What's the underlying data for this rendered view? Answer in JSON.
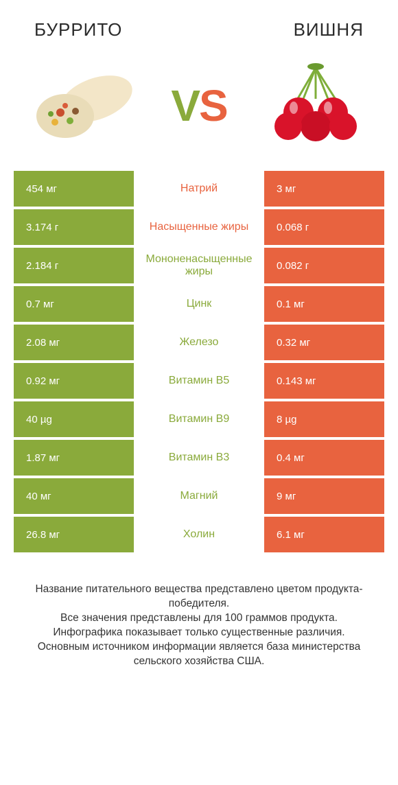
{
  "colors": {
    "green": "#8aaa3b",
    "orange": "#e8633f",
    "text": "#333333",
    "bg": "#ffffff"
  },
  "header": {
    "left_title": "БУРРИТО",
    "right_title": "ВИШНЯ"
  },
  "vs": {
    "v": "V",
    "s": "S"
  },
  "rows": [
    {
      "left": "454 мг",
      "mid": "Натрий",
      "mid_color": "orange",
      "right": "3 мг"
    },
    {
      "left": "3.174 г",
      "mid": "Насыщенные жиры",
      "mid_color": "orange",
      "right": "0.068 г"
    },
    {
      "left": "2.184 г",
      "mid": "Мононенасыщенные жиры",
      "mid_color": "green",
      "right": "0.082 г"
    },
    {
      "left": "0.7 мг",
      "mid": "Цинк",
      "mid_color": "green",
      "right": "0.1 мг"
    },
    {
      "left": "2.08 мг",
      "mid": "Железо",
      "mid_color": "green",
      "right": "0.32 мг"
    },
    {
      "left": "0.92 мг",
      "mid": "Витамин B5",
      "mid_color": "green",
      "right": "0.143 мг"
    },
    {
      "left": "40 µg",
      "mid": "Витамин B9",
      "mid_color": "green",
      "right": "8 µg"
    },
    {
      "left": "1.87 мг",
      "mid": "Витамин B3",
      "mid_color": "green",
      "right": "0.4 мг"
    },
    {
      "left": "40 мг",
      "mid": "Магний",
      "mid_color": "green",
      "right": "9 мг"
    },
    {
      "left": "26.8 мг",
      "mid": "Холин",
      "mid_color": "green",
      "right": "6.1 мг"
    }
  ],
  "footer": {
    "line1": "Название питательного вещества представлено цветом продукта-победителя.",
    "line2": "Все значения представлены для 100 граммов продукта.",
    "line3": "Инфографика показывает только существенные различия.",
    "line4": "Основным источником информации является база министерства сельского хозяйства США."
  }
}
